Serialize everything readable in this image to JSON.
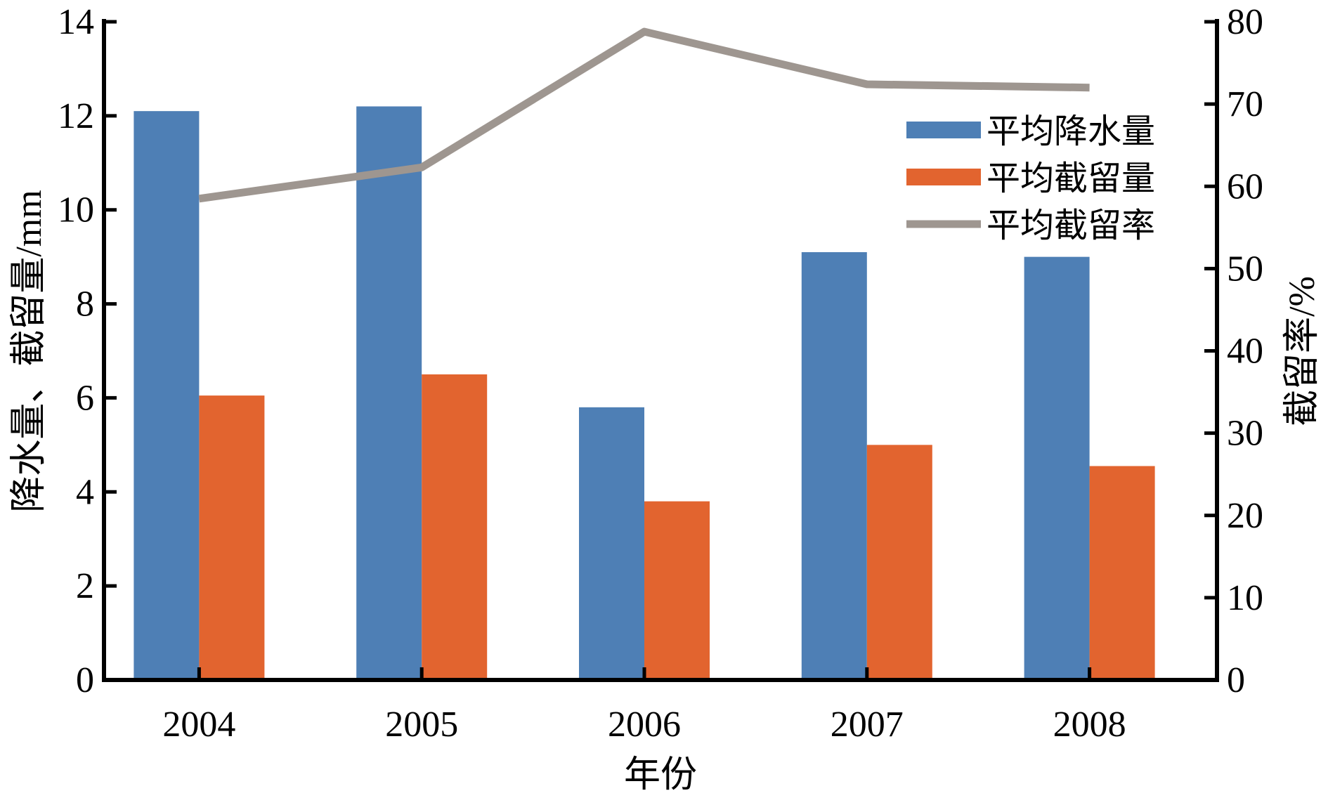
{
  "chart_data": {
    "type": "bar",
    "categories": [
      "2004",
      "2005",
      "2006",
      "2007",
      "2008"
    ],
    "xlabel": "年份",
    "ylabel": "降水量、截留量/mm",
    "y2label": "截留率/%",
    "ylim": [
      0,
      14
    ],
    "y2lim": [
      0,
      80
    ],
    "yticks": [
      "0",
      "2",
      "4",
      "6",
      "8",
      "10",
      "12",
      "14"
    ],
    "y2ticks": [
      "0",
      "10",
      "20",
      "30",
      "40",
      "50",
      "60",
      "70",
      "80"
    ],
    "grid": false,
    "legend_placement": "top-right",
    "series": [
      {
        "name": "平均降水量",
        "type": "bar",
        "axis": "left",
        "color": "#4e7fb5",
        "values": [
          12.1,
          12.2,
          5.8,
          9.1,
          9.0
        ]
      },
      {
        "name": "平均截留量",
        "type": "bar",
        "axis": "left",
        "color": "#e2642f",
        "values": [
          6.05,
          6.5,
          3.8,
          5.0,
          4.55
        ]
      },
      {
        "name": "平均截留率",
        "type": "line",
        "axis": "right",
        "color": "#9e9690",
        "values": [
          58.5,
          62.3,
          78.8,
          72.4,
          72.0
        ]
      }
    ]
  }
}
